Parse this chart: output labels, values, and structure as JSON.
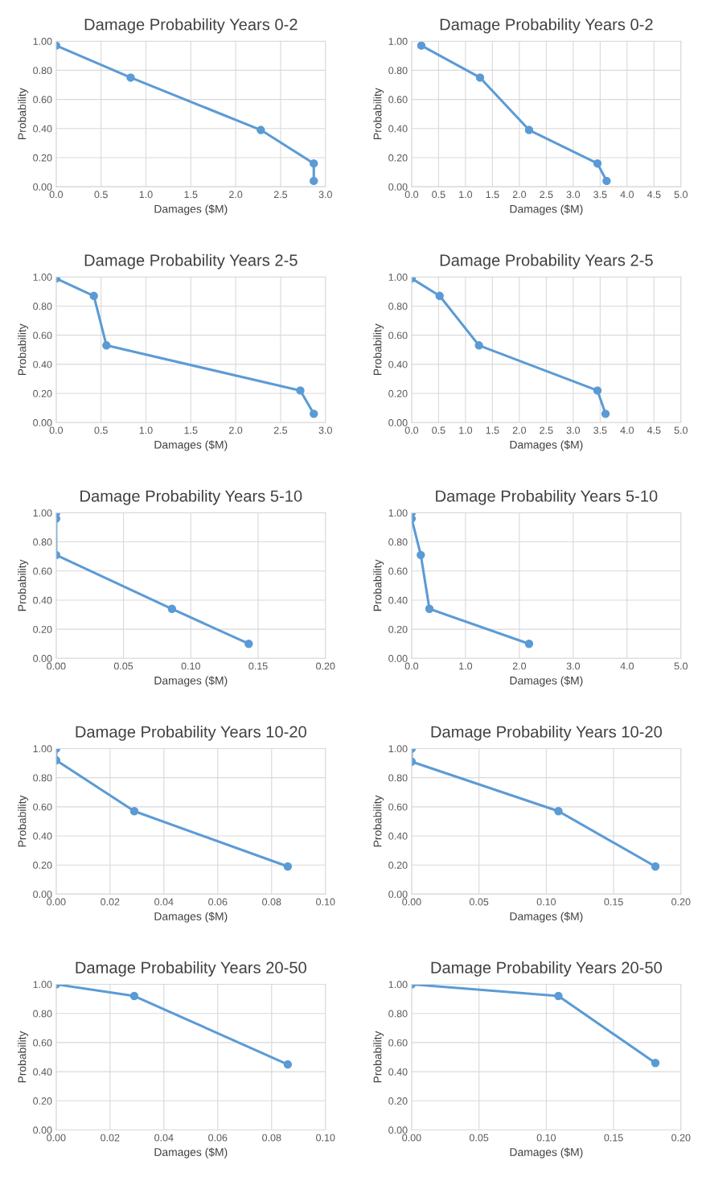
{
  "chart_data": [
    {
      "type": "line",
      "title": "Damage Probability Years 0-2",
      "xlabel": "Damages ($M)",
      "ylabel": "Probability",
      "grid": true,
      "marker": "circle",
      "line_style": "solid",
      "xlim": [
        0,
        3
      ],
      "xticks": [
        {
          "value": 0,
          "label": "0.0"
        },
        0.5,
        {
          "value": 1,
          "label": "1.0"
        },
        1.5,
        {
          "value": 2,
          "label": "2.0"
        },
        2.5,
        {
          "value": 3,
          "label": "3.0"
        }
      ],
      "ylim": [
        0,
        1
      ],
      "yticks": [
        {
          "value": 0,
          "label": "0.00"
        },
        {
          "value": 0.2,
          "label": "0.20"
        },
        {
          "value": 0.4,
          "label": "0.40"
        },
        {
          "value": 0.6,
          "label": "0.60"
        },
        {
          "value": 0.8,
          "label": "0.80"
        },
        {
          "value": 1,
          "label": "1.00"
        }
      ],
      "series": [
        {
          "color": "#5b9bd5",
          "x": [
            0.0,
            0.83,
            2.28,
            2.87,
            2.87
          ],
          "values": [
            0.97,
            0.75,
            0.39,
            0.16,
            0.04
          ]
        }
      ]
    },
    {
      "type": "line",
      "title": "Damage Probability Years 0-2",
      "xlabel": "Damages ($M)",
      "ylabel": "Probability",
      "grid": true,
      "marker": "circle",
      "line_style": "solid",
      "xlim": [
        0,
        5
      ],
      "xticks": [
        {
          "value": 0,
          "label": "0.0"
        },
        0.5,
        {
          "value": 1,
          "label": "1.0"
        },
        1.5,
        {
          "value": 2,
          "label": "2.0"
        },
        2.5,
        {
          "value": 3,
          "label": "3.0"
        },
        3.5,
        {
          "value": 4,
          "label": "4.0"
        },
        4.5,
        {
          "value": 5,
          "label": "5.0"
        }
      ],
      "ylim": [
        0,
        1
      ],
      "yticks": [
        {
          "value": 0,
          "label": "0.00"
        },
        {
          "value": 0.2,
          "label": "0.20"
        },
        {
          "value": 0.4,
          "label": "0.40"
        },
        {
          "value": 0.6,
          "label": "0.60"
        },
        {
          "value": 0.8,
          "label": "0.80"
        },
        {
          "value": 1,
          "label": "1.00"
        }
      ],
      "series": [
        {
          "color": "#5b9bd5",
          "x": [
            0.18,
            1.27,
            2.18,
            3.45,
            3.62
          ],
          "values": [
            0.97,
            0.75,
            0.39,
            0.16,
            0.04
          ]
        }
      ]
    },
    {
      "type": "line",
      "title": "Damage Probability Years 2-5",
      "xlabel": "Damages ($M)",
      "ylabel": "Probability",
      "grid": true,
      "marker": "circle",
      "line_style": "solid",
      "xlim": [
        0,
        3
      ],
      "xticks": [
        {
          "value": 0,
          "label": "0.0"
        },
        0.5,
        {
          "value": 1,
          "label": "1.0"
        },
        1.5,
        {
          "value": 2,
          "label": "2.0"
        },
        2.5,
        {
          "value": 3,
          "label": "3.0"
        }
      ],
      "ylim": [
        0,
        1
      ],
      "yticks": [
        {
          "value": 0,
          "label": "0.00"
        },
        {
          "value": 0.2,
          "label": "0.20"
        },
        {
          "value": 0.4,
          "label": "0.40"
        },
        {
          "value": 0.6,
          "label": "0.60"
        },
        {
          "value": 0.8,
          "label": "0.80"
        },
        {
          "value": 1,
          "label": "1.00"
        }
      ],
      "series": [
        {
          "color": "#5b9bd5",
          "x": [
            0.0,
            0.42,
            0.56,
            2.72,
            2.87
          ],
          "values": [
            0.99,
            0.87,
            0.53,
            0.22,
            0.06
          ]
        }
      ]
    },
    {
      "type": "line",
      "title": "Damage Probability Years 2-5",
      "xlabel": "Damages ($M)",
      "ylabel": "Probability",
      "grid": true,
      "marker": "circle",
      "line_style": "solid",
      "xlim": [
        0,
        5
      ],
      "xticks": [
        {
          "value": 0,
          "label": "0.0"
        },
        0.5,
        {
          "value": 1,
          "label": "1.0"
        },
        1.5,
        {
          "value": 2,
          "label": "2.0"
        },
        2.5,
        {
          "value": 3,
          "label": "3.0"
        },
        3.5,
        {
          "value": 4,
          "label": "4.0"
        },
        4.5,
        {
          "value": 5,
          "label": "5.0"
        }
      ],
      "ylim": [
        0,
        1
      ],
      "yticks": [
        {
          "value": 0,
          "label": "0.00"
        },
        {
          "value": 0.2,
          "label": "0.20"
        },
        {
          "value": 0.4,
          "label": "0.40"
        },
        {
          "value": 0.6,
          "label": "0.60"
        },
        {
          "value": 0.8,
          "label": "0.80"
        },
        {
          "value": 1,
          "label": "1.00"
        }
      ],
      "series": [
        {
          "color": "#5b9bd5",
          "x": [
            0.0,
            0.52,
            1.25,
            3.45,
            3.6
          ],
          "values": [
            0.99,
            0.87,
            0.53,
            0.22,
            0.06
          ]
        }
      ]
    },
    {
      "type": "line",
      "title": "Damage Probability Years 5-10",
      "xlabel": "Damages ($M)",
      "ylabel": "Probability",
      "grid": true,
      "marker": "circle",
      "line_style": "solid",
      "xlim": [
        0,
        0.2
      ],
      "xticks": [
        {
          "value": 0,
          "label": "0.00"
        },
        0.05,
        {
          "value": 0.1,
          "label": "0.10"
        },
        0.15,
        {
          "value": 0.2,
          "label": "0.20"
        }
      ],
      "ylim": [
        0,
        1
      ],
      "yticks": [
        {
          "value": 0,
          "label": "0.00"
        },
        {
          "value": 0.2,
          "label": "0.20"
        },
        {
          "value": 0.4,
          "label": "0.40"
        },
        {
          "value": 0.6,
          "label": "0.60"
        },
        {
          "value": 0.8,
          "label": "0.80"
        },
        {
          "value": 1,
          "label": "1.00"
        }
      ],
      "series": [
        {
          "color": "#5b9bd5",
          "x": [
            0.0,
            0.0,
            0.0,
            0.086,
            0.143
          ],
          "values": [
            1.0,
            0.96,
            0.71,
            0.34,
            0.1
          ]
        }
      ]
    },
    {
      "type": "line",
      "title": "Damage Probability Years 5-10",
      "xlabel": "Damages ($M)",
      "ylabel": "Probability",
      "grid": true,
      "marker": "circle",
      "line_style": "solid",
      "xlim": [
        0,
        5
      ],
      "xticks": [
        {
          "value": 0,
          "label": "0.0"
        },
        {
          "value": 1,
          "label": "1.0"
        },
        {
          "value": 2,
          "label": "2.0"
        },
        {
          "value": 3,
          "label": "3.0"
        },
        {
          "value": 4,
          "label": "4.0"
        },
        {
          "value": 5,
          "label": "5.0"
        }
      ],
      "ylim": [
        0,
        1
      ],
      "yticks": [
        {
          "value": 0,
          "label": "0.00"
        },
        {
          "value": 0.2,
          "label": "0.20"
        },
        {
          "value": 0.4,
          "label": "0.40"
        },
        {
          "value": 0.6,
          "label": "0.60"
        },
        {
          "value": 0.8,
          "label": "0.80"
        },
        {
          "value": 1,
          "label": "1.00"
        }
      ],
      "series": [
        {
          "color": "#5b9bd5",
          "x": [
            0.0,
            0.0,
            0.17,
            0.33,
            2.18
          ],
          "values": [
            1.0,
            0.96,
            0.71,
            0.34,
            0.1
          ]
        }
      ]
    },
    {
      "type": "line",
      "title": "Damage Probability Years 10-20",
      "xlabel": "Damages ($M)",
      "ylabel": "Probability",
      "grid": true,
      "marker": "circle",
      "line_style": "solid",
      "xlim": [
        0,
        0.1
      ],
      "xticks": [
        {
          "value": 0,
          "label": "0.00"
        },
        0.02,
        0.04,
        0.06,
        0.08,
        {
          "value": 0.1,
          "label": "0.10"
        }
      ],
      "ylim": [
        0,
        1
      ],
      "yticks": [
        {
          "value": 0,
          "label": "0.00"
        },
        {
          "value": 0.2,
          "label": "0.20"
        },
        {
          "value": 0.4,
          "label": "0.40"
        },
        {
          "value": 0.6,
          "label": "0.60"
        },
        {
          "value": 0.8,
          "label": "0.80"
        },
        {
          "value": 1,
          "label": "1.00"
        }
      ],
      "series": [
        {
          "color": "#5b9bd5",
          "x": [
            0.0,
            0.0,
            0.029,
            0.086
          ],
          "values": [
            1.0,
            0.92,
            0.57,
            0.19
          ]
        }
      ]
    },
    {
      "type": "line",
      "title": "Damage Probability Years 10-20",
      "xlabel": "Damages ($M)",
      "ylabel": "Probability",
      "grid": true,
      "marker": "circle",
      "line_style": "solid",
      "xlim": [
        0,
        0.2
      ],
      "xticks": [
        {
          "value": 0,
          "label": "0.00"
        },
        0.05,
        {
          "value": 0.1,
          "label": "0.10"
        },
        0.15,
        {
          "value": 0.2,
          "label": "0.20"
        }
      ],
      "ylim": [
        0,
        1
      ],
      "yticks": [
        {
          "value": 0,
          "label": "0.00"
        },
        {
          "value": 0.2,
          "label": "0.20"
        },
        {
          "value": 0.4,
          "label": "0.40"
        },
        {
          "value": 0.6,
          "label": "0.60"
        },
        {
          "value": 0.8,
          "label": "0.80"
        },
        {
          "value": 1,
          "label": "1.00"
        }
      ],
      "series": [
        {
          "color": "#5b9bd5",
          "x": [
            0.0,
            0.0,
            0.109,
            0.181
          ],
          "values": [
            1.0,
            0.91,
            0.57,
            0.19
          ]
        }
      ]
    },
    {
      "type": "line",
      "title": "Damage Probability Years 20-50",
      "xlabel": "Damages ($M)",
      "ylabel": "Probability",
      "grid": true,
      "marker": "circle",
      "line_style": "solid",
      "xlim": [
        0,
        0.1
      ],
      "xticks": [
        {
          "value": 0,
          "label": "0.00"
        },
        0.02,
        0.04,
        0.06,
        0.08,
        {
          "value": 0.1,
          "label": "0.10"
        }
      ],
      "ylim": [
        0,
        1
      ],
      "yticks": [
        {
          "value": 0,
          "label": "0.00"
        },
        {
          "value": 0.2,
          "label": "0.20"
        },
        {
          "value": 0.4,
          "label": "0.40"
        },
        {
          "value": 0.6,
          "label": "0.60"
        },
        {
          "value": 0.8,
          "label": "0.80"
        },
        {
          "value": 1,
          "label": "1.00"
        }
      ],
      "series": [
        {
          "color": "#5b9bd5",
          "x": [
            0.0,
            0.029,
            0.086
          ],
          "values": [
            1.0,
            0.92,
            0.45
          ]
        }
      ]
    },
    {
      "type": "line",
      "title": "Damage Probability Years 20-50",
      "xlabel": "Damages ($M)",
      "ylabel": "Probability",
      "grid": true,
      "marker": "circle",
      "line_style": "solid",
      "xlim": [
        0,
        0.2
      ],
      "xticks": [
        {
          "value": 0,
          "label": "0.00"
        },
        0.05,
        {
          "value": 0.1,
          "label": "0.10"
        },
        0.15,
        {
          "value": 0.2,
          "label": "0.20"
        }
      ],
      "ylim": [
        0,
        1
      ],
      "yticks": [
        {
          "value": 0,
          "label": "0.00"
        },
        {
          "value": 0.2,
          "label": "0.20"
        },
        {
          "value": 0.4,
          "label": "0.40"
        },
        {
          "value": 0.6,
          "label": "0.60"
        },
        {
          "value": 0.8,
          "label": "0.80"
        },
        {
          "value": 1,
          "label": "1.00"
        }
      ],
      "series": [
        {
          "color": "#5b9bd5",
          "x": [
            0.0,
            0.109,
            0.181
          ],
          "values": [
            1.0,
            0.92,
            0.46
          ]
        }
      ]
    }
  ]
}
